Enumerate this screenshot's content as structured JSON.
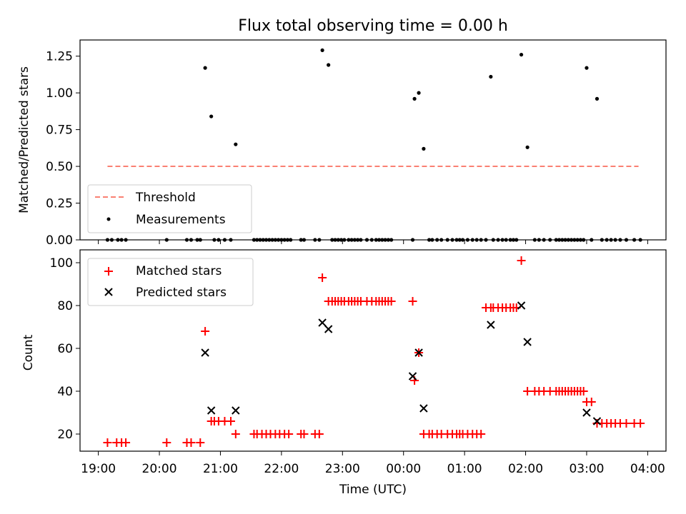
{
  "chart_data": [
    {
      "type": "scatter",
      "title": "Flux total observing time = 0.00 h",
      "xlabel": "",
      "ylabel": "Matched/Predicted stars",
      "xlim": [
        18.7,
        28.3
      ],
      "ylim": [
        0.0,
        1.36
      ],
      "yticks": [
        0.0,
        0.25,
        0.5,
        0.75,
        1.0,
        1.25
      ],
      "ytick_labels": [
        "0.00",
        "0.25",
        "0.50",
        "0.75",
        "1.00",
        "1.25"
      ],
      "legend": {
        "position": "lower-left",
        "entries": [
          "Threshold",
          "Measurements"
        ]
      },
      "threshold": {
        "name": "Threshold",
        "value": 0.5,
        "x_range": [
          19.15,
          27.85
        ],
        "color": "#fa8072"
      },
      "measurements": {
        "name": "Measurements",
        "color": "#000000",
        "x": [
          19.15,
          19.22,
          19.32,
          19.38,
          19.45,
          20.12,
          20.45,
          20.52,
          20.62,
          20.67,
          20.75,
          20.85,
          20.9,
          20.97,
          21.07,
          21.17,
          21.25,
          21.55,
          21.6,
          21.65,
          21.7,
          21.75,
          21.8,
          21.85,
          21.9,
          21.95,
          22.0,
          22.05,
          22.1,
          22.15,
          22.32,
          22.37,
          22.55,
          22.62,
          22.67,
          22.77,
          22.83,
          22.88,
          22.93,
          22.98,
          23.03,
          23.1,
          23.15,
          23.2,
          23.25,
          23.3,
          23.4,
          23.48,
          23.55,
          23.6,
          23.65,
          23.7,
          23.75,
          23.8,
          24.15,
          24.18,
          24.25,
          24.33,
          24.42,
          24.47,
          24.55,
          24.62,
          24.72,
          24.8,
          24.87,
          24.92,
          24.97,
          25.05,
          25.13,
          25.2,
          25.27,
          25.35,
          25.43,
          25.47,
          25.55,
          25.62,
          25.68,
          25.75,
          25.8,
          25.85,
          25.93,
          26.03,
          26.15,
          26.22,
          26.3,
          26.4,
          26.5,
          26.55,
          26.6,
          26.65,
          26.7,
          26.75,
          26.8,
          26.85,
          26.9,
          26.95,
          27.0,
          27.08,
          27.17,
          27.25,
          27.33,
          27.4,
          27.47,
          27.55,
          27.65,
          27.78,
          27.88
        ],
        "y": [
          0,
          0,
          0,
          0,
          0,
          0,
          0,
          0,
          0,
          0,
          1.17,
          0.84,
          0,
          0,
          0,
          0,
          0.65,
          0,
          0,
          0,
          0,
          0,
          0,
          0,
          0,
          0,
          0,
          0,
          0,
          0,
          0,
          0,
          0,
          0,
          1.29,
          1.19,
          0,
          0,
          0,
          0,
          0,
          0,
          0,
          0,
          0,
          0,
          0,
          0,
          0,
          0,
          0,
          0,
          0,
          0,
          0,
          0.96,
          1.0,
          0.62,
          0,
          0,
          0,
          0,
          0,
          0,
          0,
          0,
          0,
          0,
          0,
          0,
          0,
          0,
          1.11,
          0,
          0,
          0,
          0,
          0,
          0,
          0,
          1.26,
          0.63,
          0,
          0,
          0,
          0,
          0,
          0,
          0,
          0,
          0,
          0,
          0,
          0,
          0,
          0,
          1.17,
          0,
          0.96,
          0,
          0,
          0,
          0,
          0,
          0,
          0,
          0
        ]
      }
    },
    {
      "type": "scatter",
      "title": "",
      "xlabel": "Time (UTC)",
      "ylabel": "Count",
      "xlim": [
        18.7,
        28.3
      ],
      "ylim": [
        12,
        106
      ],
      "yticks": [
        20,
        40,
        60,
        80,
        100
      ],
      "ytick_labels": [
        "20",
        "40",
        "60",
        "80",
        "100"
      ],
      "xticks": [
        19,
        20,
        21,
        22,
        23,
        24,
        25,
        26,
        27,
        28
      ],
      "xtick_labels": [
        "19:00",
        "20:00",
        "21:00",
        "22:00",
        "23:00",
        "00:00",
        "01:00",
        "02:00",
        "03:00",
        "04:00"
      ],
      "legend": {
        "position": "top-left",
        "entries": [
          "Matched stars",
          "Predicted stars"
        ]
      },
      "series": [
        {
          "name": "Matched stars",
          "marker": "plus",
          "color": "#ff0000",
          "x": [
            19.15,
            19.3,
            19.38,
            19.45,
            20.12,
            20.45,
            20.52,
            20.67,
            20.75,
            20.85,
            20.9,
            20.97,
            21.07,
            21.17,
            21.25,
            21.55,
            21.6,
            21.68,
            21.75,
            21.82,
            21.9,
            21.97,
            22.05,
            22.12,
            22.32,
            22.37,
            22.55,
            22.62,
            22.67,
            22.77,
            22.83,
            22.88,
            22.93,
            22.98,
            23.03,
            23.1,
            23.15,
            23.2,
            23.25,
            23.3,
            23.4,
            23.48,
            23.55,
            23.6,
            23.65,
            23.7,
            23.75,
            23.8,
            24.15,
            24.18,
            24.25,
            24.33,
            24.42,
            24.47,
            24.55,
            24.62,
            24.72,
            24.8,
            24.87,
            24.92,
            24.97,
            25.05,
            25.13,
            25.2,
            25.27,
            25.35,
            25.43,
            25.47,
            25.55,
            25.62,
            25.68,
            25.75,
            25.8,
            25.85,
            25.93,
            26.03,
            26.15,
            26.22,
            26.3,
            26.4,
            26.5,
            26.55,
            26.6,
            26.65,
            26.7,
            26.75,
            26.8,
            26.85,
            26.9,
            26.95,
            27.0,
            27.08,
            27.17,
            27.25,
            27.33,
            27.4,
            27.47,
            27.55,
            27.65,
            27.78,
            27.88
          ],
          "y": [
            16,
            16,
            16,
            16,
            16,
            16,
            16,
            16,
            68,
            26,
            26,
            26,
            26,
            26,
            20,
            20,
            20,
            20,
            20,
            20,
            20,
            20,
            20,
            20,
            20,
            20,
            20,
            20,
            93,
            82,
            82,
            82,
            82,
            82,
            82,
            82,
            82,
            82,
            82,
            82,
            82,
            82,
            82,
            82,
            82,
            82,
            82,
            82,
            82,
            45,
            58,
            20,
            20,
            20,
            20,
            20,
            20,
            20,
            20,
            20,
            20,
            20,
            20,
            20,
            20,
            79,
            79,
            79,
            79,
            79,
            79,
            79,
            79,
            79,
            101,
            40,
            40,
            40,
            40,
            40,
            40,
            40,
            40,
            40,
            40,
            40,
            40,
            40,
            40,
            40,
            35,
            35,
            25,
            25,
            25,
            25,
            25,
            25,
            25,
            25,
            25
          ]
        },
        {
          "name": "Predicted stars",
          "marker": "x",
          "color": "#000000",
          "x": [
            20.75,
            20.85,
            21.25,
            22.67,
            22.77,
            24.15,
            24.25,
            24.33,
            25.43,
            25.93,
            26.03,
            27.0,
            27.17
          ],
          "y": [
            58,
            31,
            31,
            72,
            69,
            47,
            58,
            32,
            71,
            80,
            63,
            30,
            26
          ]
        }
      ]
    }
  ]
}
